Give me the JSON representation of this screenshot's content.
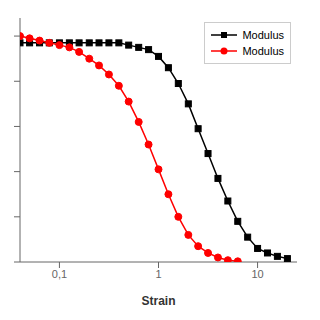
{
  "chart_data": {
    "type": "line",
    "xlabel": "Strain",
    "log": "x",
    "legend": "upper right",
    "grid": false,
    "tick_labels": "x",
    "xlim": [
      0.04,
      25.0
    ],
    "xticks": [
      {
        "value": 0.1,
        "label": "0,1"
      },
      1,
      10
    ],
    "ylim": [
      0.0,
      1.08
    ],
    "yticks": [
      0,
      0.2,
      0.4,
      0.6,
      0.8,
      1.0
    ],
    "series": [
      {
        "name": "Modulus",
        "color": "black",
        "marker": "square",
        "line_style": "solid",
        "x": [
          0.04,
          0.05,
          0.063,
          0.079,
          0.1,
          0.126,
          0.158,
          0.2,
          0.251,
          0.316,
          0.398,
          0.5,
          0.631,
          0.794,
          1.0,
          1.259,
          1.585,
          2.0,
          2.512,
          3.162,
          3.981,
          5.012,
          6.31,
          7.943,
          10.0,
          12.59,
          15.85,
          20.0
        ],
        "values": [
          0.97,
          0.97,
          0.97,
          0.97,
          0.97,
          0.97,
          0.97,
          0.97,
          0.97,
          0.97,
          0.97,
          0.96,
          0.95,
          0.94,
          0.91,
          0.86,
          0.79,
          0.7,
          0.59,
          0.48,
          0.37,
          0.27,
          0.18,
          0.11,
          0.06,
          0.04,
          0.025,
          0.015
        ]
      },
      {
        "name": "Modulus",
        "color": "red",
        "marker": "circle",
        "line_style": "solid",
        "x": [
          0.04,
          0.05,
          0.063,
          0.079,
          0.1,
          0.126,
          0.158,
          0.2,
          0.251,
          0.316,
          0.398,
          0.5,
          0.631,
          0.794,
          1.0,
          1.259,
          1.585,
          2.0,
          2.512,
          3.162,
          3.981,
          5.012,
          6.31
        ],
        "values": [
          1.0,
          0.99,
          0.98,
          0.97,
          0.96,
          0.95,
          0.93,
          0.9,
          0.87,
          0.83,
          0.78,
          0.71,
          0.62,
          0.52,
          0.41,
          0.3,
          0.2,
          0.12,
          0.07,
          0.04,
          0.02,
          0.008,
          0.003
        ]
      }
    ]
  }
}
